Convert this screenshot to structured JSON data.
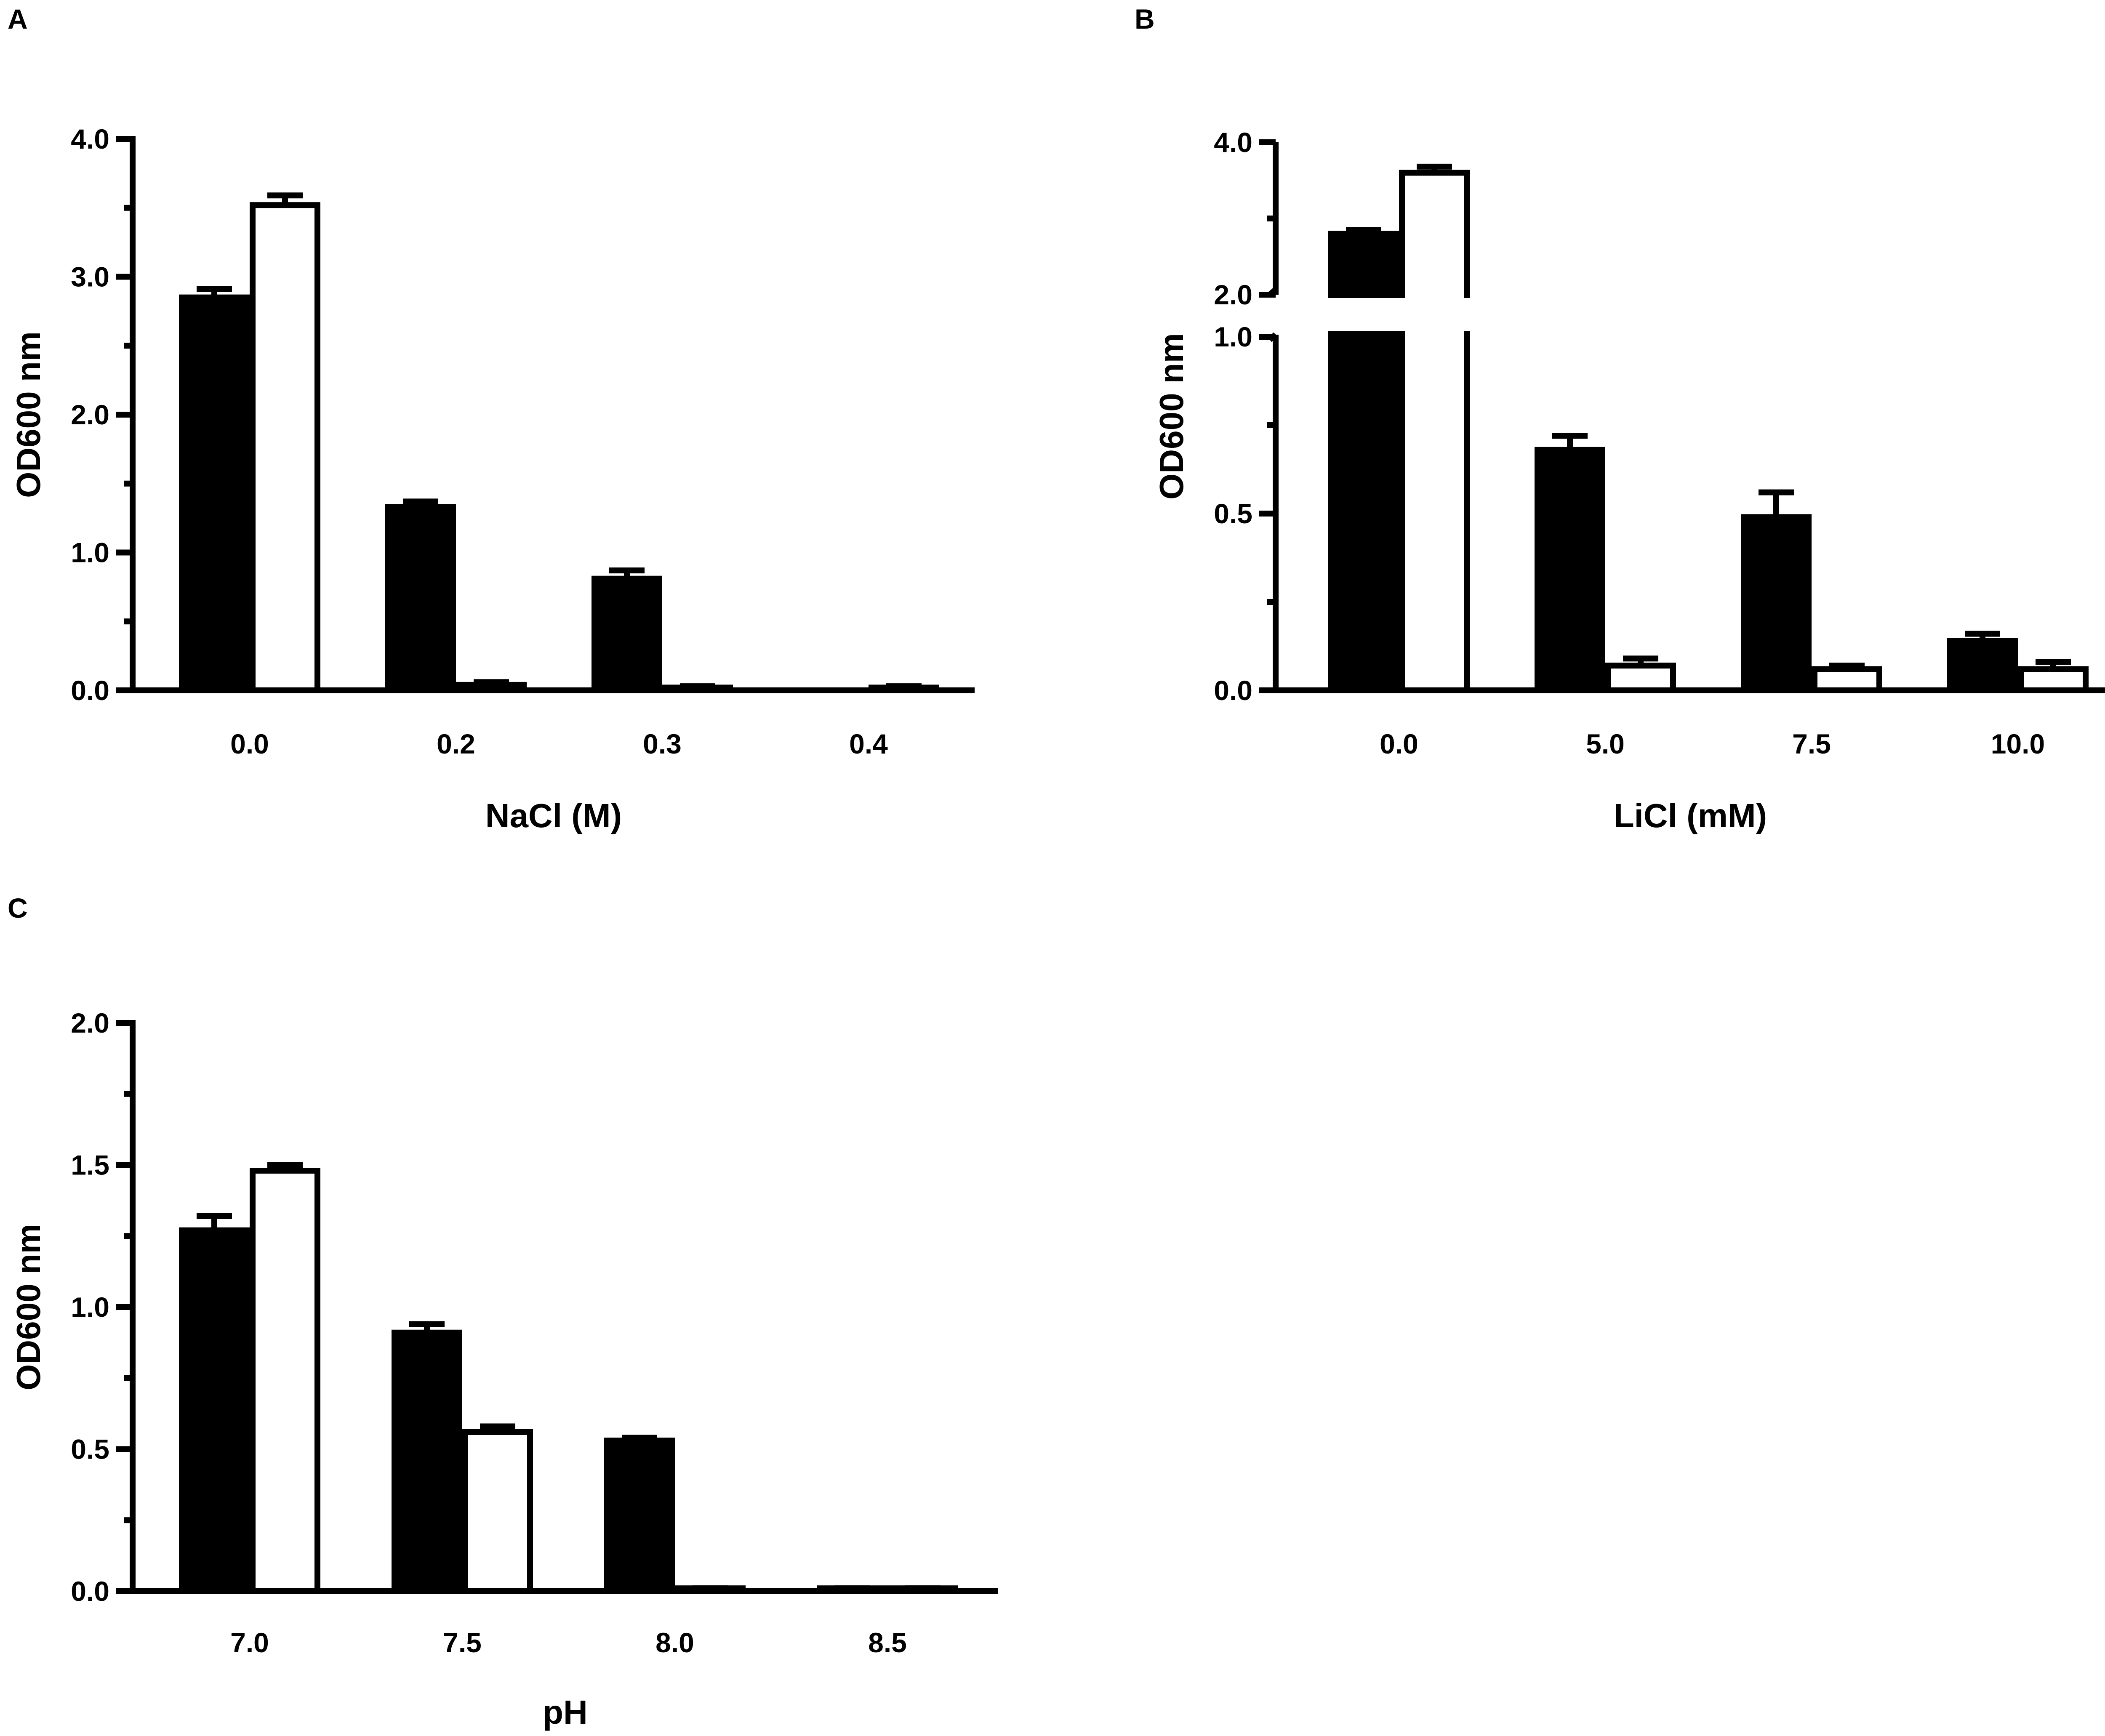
{
  "figure": {
    "panels": [
      {
        "label": "A"
      },
      {
        "label": "B"
      },
      {
        "label": "C"
      }
    ]
  },
  "colors": {
    "filled": "#000000",
    "open": "#ffffff",
    "axis": "#000000"
  },
  "chart_data": [
    {
      "panel": "A",
      "type": "bar",
      "xlabel": "NaCl (M)",
      "ylabel": "OD600 nm",
      "categories": [
        "0.0",
        "0.2",
        "0.3",
        "0.4"
      ],
      "ylim": [
        0,
        4
      ],
      "yticks": [
        "0.0",
        "1.0",
        "2.0",
        "3.0",
        "4.0"
      ],
      "series": [
        {
          "style": "filled",
          "values": [
            2.85,
            1.33,
            0.81,
            0.0
          ],
          "errors": [
            0.06,
            0.04,
            0.06,
            0.0
          ]
        },
        {
          "style": "open",
          "values": [
            3.52,
            0.04,
            0.02,
            0.02
          ],
          "errors": [
            0.07,
            0.02,
            0.01,
            0.01
          ]
        }
      ]
    },
    {
      "panel": "B",
      "type": "bar",
      "xlabel": "LiCl (mM)",
      "ylabel": "OD600 nm",
      "categories": [
        "0.0",
        "5.0",
        "7.5",
        "10.0"
      ],
      "ylim": [
        0,
        4
      ],
      "axis_break": [
        1.0,
        2.0
      ],
      "yticks": [
        "0.0",
        "0.5",
        "1.0",
        "2.0",
        "4.0"
      ],
      "series": [
        {
          "style": "filled",
          "values": [
            2.8,
            0.68,
            0.49,
            0.14
          ],
          "errors": [
            0.05,
            0.04,
            0.07,
            0.02
          ]
        },
        {
          "style": "open",
          "values": [
            3.6,
            0.07,
            0.06,
            0.06
          ],
          "errors": [
            0.08,
            0.02,
            0.01,
            0.02
          ]
        }
      ]
    },
    {
      "panel": "C",
      "type": "bar",
      "xlabel": "pH",
      "ylabel": "OD600 nm",
      "categories": [
        "7.0",
        "7.5",
        "8.0",
        "8.5"
      ],
      "ylim": [
        0,
        2
      ],
      "yticks": [
        "0.0",
        "0.5",
        "1.0",
        "1.5",
        "2.0"
      ],
      "series": [
        {
          "style": "filled",
          "values": [
            1.27,
            0.91,
            0.53,
            0.01
          ],
          "errors": [
            0.05,
            0.03,
            0.01,
            0.0
          ]
        },
        {
          "style": "open",
          "values": [
            1.48,
            0.56,
            0.01,
            0.01
          ],
          "errors": [
            0.02,
            0.02,
            0.0,
            0.0
          ]
        }
      ]
    }
  ]
}
